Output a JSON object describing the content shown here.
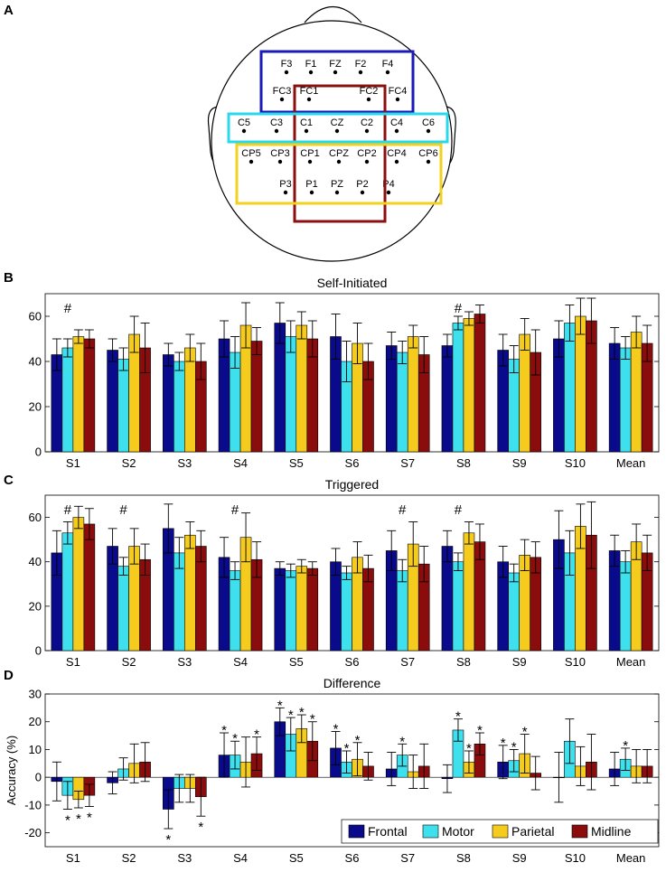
{
  "colors": {
    "frontal": "#0a0a8c",
    "motor": "#3fe0ee",
    "parietal": "#f5cc1e",
    "midline": "#8a0c0c",
    "box_frontal": "#1a1ab8",
    "box_motor": "#2ad8ec",
    "box_parietal": "#f2d21e",
    "box_midline": "#8a1010"
  },
  "panels": {
    "A": {
      "label": "A"
    },
    "B": {
      "label": "B"
    },
    "C": {
      "label": "C"
    },
    "D": {
      "label": "D"
    }
  },
  "electrodes": [
    {
      "name": "F3",
      "row": 0,
      "col": 0
    },
    {
      "name": "F1",
      "row": 0,
      "col": 1
    },
    {
      "name": "FZ",
      "row": 0,
      "col": 2
    },
    {
      "name": "F2",
      "row": 0,
      "col": 3
    },
    {
      "name": "F4",
      "row": 0,
      "col": 4
    },
    {
      "name": "FC3",
      "row": 1,
      "col": 0
    },
    {
      "name": "FC1",
      "row": 1,
      "col": 1
    },
    {
      "name": "FC2",
      "row": 1,
      "col": 2
    },
    {
      "name": "FC4",
      "row": 1,
      "col": 3
    },
    {
      "name": "C5",
      "row": 2,
      "col": 0
    },
    {
      "name": "C3",
      "row": 2,
      "col": 1
    },
    {
      "name": "C1",
      "row": 2,
      "col": 2
    },
    {
      "name": "CZ",
      "row": 2,
      "col": 3
    },
    {
      "name": "C2",
      "row": 2,
      "col": 4
    },
    {
      "name": "C4",
      "row": 2,
      "col": 5
    },
    {
      "name": "C6",
      "row": 2,
      "col": 6
    },
    {
      "name": "CP5",
      "row": 3,
      "col": 0
    },
    {
      "name": "CP3",
      "row": 3,
      "col": 1
    },
    {
      "name": "CP1",
      "row": 3,
      "col": 2
    },
    {
      "name": "CPZ",
      "row": 3,
      "col": 3
    },
    {
      "name": "CP2",
      "row": 3,
      "col": 4
    },
    {
      "name": "CP4",
      "row": 3,
      "col": 5
    },
    {
      "name": "CP6",
      "row": 3,
      "col": 6
    },
    {
      "name": "P3",
      "row": 4,
      "col": 0
    },
    {
      "name": "P1",
      "row": 4,
      "col": 1
    },
    {
      "name": "PZ",
      "row": 4,
      "col": 2
    },
    {
      "name": "P2",
      "row": 4,
      "col": 3
    },
    {
      "name": "P4",
      "row": 4,
      "col": 4
    }
  ],
  "chart_data": [
    {
      "panel": "B",
      "type": "bar",
      "title": "Self-Initiated",
      "xlabel": "",
      "ylabel": "",
      "ylim": [
        0,
        70
      ],
      "yticks": [
        0,
        20,
        40,
        60
      ],
      "categories": [
        "S1",
        "S2",
        "S3",
        "S4",
        "S5",
        "S6",
        "S7",
        "S8",
        "S9",
        "S10",
        "Mean"
      ],
      "series": [
        {
          "name": "Frontal",
          "color_key": "frontal",
          "values": [
            43,
            45,
            43,
            50,
            57,
            51,
            47,
            47,
            45,
            50,
            48
          ],
          "errors": [
            7,
            5,
            5,
            8,
            9,
            10,
            6,
            5,
            7,
            8,
            7
          ]
        },
        {
          "name": "Motor",
          "color_key": "motor",
          "values": [
            46,
            41,
            40,
            44,
            51,
            40,
            44,
            57,
            41,
            57,
            46
          ],
          "errors": [
            4,
            5,
            4,
            7,
            7,
            9,
            5,
            3,
            6,
            8,
            5
          ]
        },
        {
          "name": "Parietal",
          "color_key": "parietal",
          "values": [
            51,
            52,
            46,
            56,
            56,
            48,
            51,
            59,
            52,
            60,
            53
          ],
          "errors": [
            3,
            8,
            6,
            10,
            6,
            9,
            5,
            3,
            7,
            8,
            7
          ]
        },
        {
          "name": "Midline",
          "color_key": "midline",
          "values": [
            50,
            46,
            40,
            49,
            50,
            40,
            43,
            61,
            44,
            58,
            48
          ],
          "errors": [
            4,
            11,
            8,
            6,
            8,
            8,
            8,
            4,
            10,
            10,
            8
          ]
        }
      ],
      "annotations": [
        {
          "symbol": "#",
          "category": "S1"
        },
        {
          "symbol": "#",
          "category": "S8"
        }
      ]
    },
    {
      "panel": "C",
      "type": "bar",
      "title": "Triggered",
      "xlabel": "",
      "ylabel": "",
      "ylim": [
        0,
        70
      ],
      "yticks": [
        0,
        20,
        40,
        60
      ],
      "categories": [
        "S1",
        "S2",
        "S3",
        "S4",
        "S5",
        "S6",
        "S7",
        "S8",
        "S9",
        "S10",
        "Mean"
      ],
      "series": [
        {
          "name": "Frontal",
          "color_key": "frontal",
          "values": [
            44,
            47,
            55,
            42,
            37,
            40,
            45,
            47,
            40,
            50,
            45
          ],
          "errors": [
            10,
            8,
            11,
            9,
            3,
            6,
            9,
            7,
            7,
            13,
            7
          ]
        },
        {
          "name": "Motor",
          "color_key": "motor",
          "values": [
            53,
            38,
            44,
            36,
            36,
            35,
            36,
            40,
            35,
            44,
            40
          ],
          "errors": [
            5,
            4,
            7,
            4,
            3,
            3,
            5,
            4,
            4,
            10,
            5
          ]
        },
        {
          "name": "Parietal",
          "color_key": "parietal",
          "values": [
            60,
            47,
            52,
            51,
            38,
            42,
            48,
            53,
            43,
            56,
            49
          ],
          "errors": [
            5,
            8,
            6,
            11,
            3,
            7,
            10,
            5,
            7,
            10,
            8
          ]
        },
        {
          "name": "Midline",
          "color_key": "midline",
          "values": [
            57,
            41,
            47,
            41,
            37,
            37,
            39,
            49,
            42,
            52,
            44
          ],
          "errors": [
            7,
            7,
            7,
            8,
            3,
            6,
            8,
            8,
            7,
            15,
            8
          ]
        }
      ],
      "annotations": [
        {
          "symbol": "#",
          "category": "S1"
        },
        {
          "symbol": "#",
          "category": "S2"
        },
        {
          "symbol": "#",
          "category": "S4"
        },
        {
          "symbol": "#",
          "category": "S7"
        },
        {
          "symbol": "#",
          "category": "S8"
        }
      ]
    },
    {
      "panel": "D",
      "type": "bar",
      "title": "Difference",
      "xlabel": "",
      "ylabel": "Accuracy (%)",
      "ylim": [
        -25,
        30
      ],
      "yticks": [
        -20,
        -10,
        0,
        10,
        20,
        30
      ],
      "categories": [
        "S1",
        "S2",
        "S3",
        "S4",
        "S5",
        "S6",
        "S7",
        "S8",
        "S9",
        "S10",
        "Mean"
      ],
      "series": [
        {
          "name": "Frontal",
          "color_key": "frontal",
          "values": [
            -1.5,
            -2,
            -11.5,
            8,
            20,
            10.5,
            3,
            -0.5,
            5.5,
            0,
            3
          ],
          "errors": [
            7,
            4,
            7,
            8,
            5,
            6,
            6,
            5,
            6,
            9,
            6
          ]
        },
        {
          "name": "Motor",
          "color_key": "motor",
          "values": [
            -6.5,
            3,
            -4,
            8,
            15.5,
            5.5,
            8,
            17,
            6,
            13,
            6.5
          ],
          "errors": [
            5,
            4,
            5,
            5,
            6,
            4,
            4,
            4,
            4,
            8,
            4
          ]
        },
        {
          "name": "Parietal",
          "color_key": "parietal",
          "values": [
            -8,
            5,
            -4,
            5.5,
            17.5,
            6.5,
            2,
            5.5,
            8.5,
            4,
            4
          ],
          "errors": [
            3,
            7,
            5,
            9,
            5,
            6,
            6,
            4,
            7,
            7,
            6
          ]
        },
        {
          "name": "Midline",
          "color_key": "midline",
          "values": [
            -6.5,
            5.5,
            -7,
            8.5,
            13,
            4,
            4,
            12,
            1.5,
            5.5,
            4
          ],
          "errors": [
            4,
            7,
            7,
            6,
            7,
            5,
            8,
            4,
            6,
            10,
            6
          ]
        }
      ],
      "significance": [
        {
          "category": "S1",
          "series": [
            "Motor",
            "Parietal",
            "Midline"
          ],
          "position": "below"
        },
        {
          "category": "S3",
          "series": [
            "Frontal",
            "Midline"
          ],
          "position": "below"
        },
        {
          "category": "S4",
          "series": [
            "Frontal",
            "Motor",
            "Midline"
          ],
          "position": "above"
        },
        {
          "category": "S5",
          "series": [
            "Frontal",
            "Motor",
            "Parietal",
            "Midline"
          ],
          "position": "above"
        },
        {
          "category": "S6",
          "series": [
            "Frontal",
            "Motor",
            "Parietal"
          ],
          "position": "above"
        },
        {
          "category": "S7",
          "series": [
            "Motor"
          ],
          "position": "above"
        },
        {
          "category": "S8",
          "series": [
            "Motor",
            "Parietal",
            "Midline"
          ],
          "position": "above"
        },
        {
          "category": "S9",
          "series": [
            "Frontal",
            "Motor",
            "Parietal"
          ],
          "position": "above"
        },
        {
          "category": "Mean",
          "series": [
            "Motor"
          ],
          "position": "above"
        }
      ],
      "significance_symbol": "*",
      "legend": [
        "Frontal",
        "Motor",
        "Parietal",
        "Midline"
      ],
      "legend_position": "bottom-right"
    }
  ]
}
